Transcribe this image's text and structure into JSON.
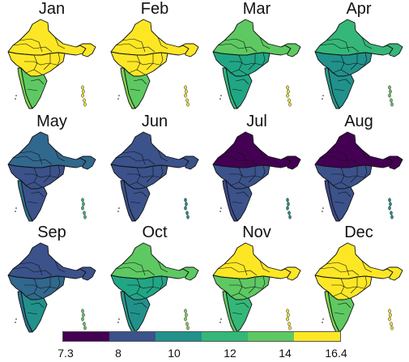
{
  "figure": {
    "panels": [
      {
        "month": "Jan",
        "north": "#fde725",
        "mid": "#fde725",
        "south": "#5ec962",
        "coast": "#7fd34e",
        "islands": "#fde725"
      },
      {
        "month": "Feb",
        "north": "#fde725",
        "mid": "#fde725",
        "south": "#5ec962",
        "coast": "#7fd34e",
        "islands": "#fde725"
      },
      {
        "month": "Mar",
        "north": "#5ec962",
        "mid": "#21a685",
        "south": "#21a685",
        "coast": "#35b779",
        "islands": "#fde725"
      },
      {
        "month": "Apr",
        "north": "#35b779",
        "mid": "#21918c",
        "south": "#21918c",
        "coast": "#2a9a87",
        "islands": "#5ec962"
      },
      {
        "month": "May",
        "north": "#31688e",
        "mid": "#3b528b",
        "south": "#3b528b",
        "coast": "#2c728e",
        "islands": "#35b779"
      },
      {
        "month": "Jun",
        "north": "#3b528b",
        "mid": "#3b528b",
        "south": "#3b528b",
        "coast": "#3b528b",
        "islands": "#21918c"
      },
      {
        "month": "Jul",
        "north": "#440154",
        "mid": "#3b528b",
        "south": "#3b528b",
        "coast": "#3e4a89",
        "islands": "#21918c"
      },
      {
        "month": "Aug",
        "north": "#440154",
        "mid": "#3b528b",
        "south": "#3b528b",
        "coast": "#3e4a89",
        "islands": "#21918c"
      },
      {
        "month": "Sep",
        "north": "#3b528b",
        "mid": "#31688e",
        "south": "#21918c",
        "coast": "#2c728e",
        "islands": "#5ec962"
      },
      {
        "month": "Oct",
        "north": "#5ec962",
        "mid": "#21a685",
        "south": "#21918c",
        "coast": "#2a9a87",
        "islands": "#7fd34e"
      },
      {
        "month": "Nov",
        "north": "#fde725",
        "mid": "#5ec962",
        "south": "#35b779",
        "coast": "#5ec962",
        "islands": "#fde725"
      },
      {
        "month": "Dec",
        "north": "#fde725",
        "mid": "#fde725",
        "south": "#5ec962",
        "coast": "#7fd34e",
        "islands": "#fde725"
      }
    ]
  },
  "colorbar": {
    "colors": [
      "#440154",
      "#3b528b",
      "#21918c",
      "#35b779",
      "#5ec962",
      "#fde725"
    ],
    "ticks": [
      "7.3",
      "8",
      "10",
      "12",
      "14",
      "16.4"
    ]
  }
}
